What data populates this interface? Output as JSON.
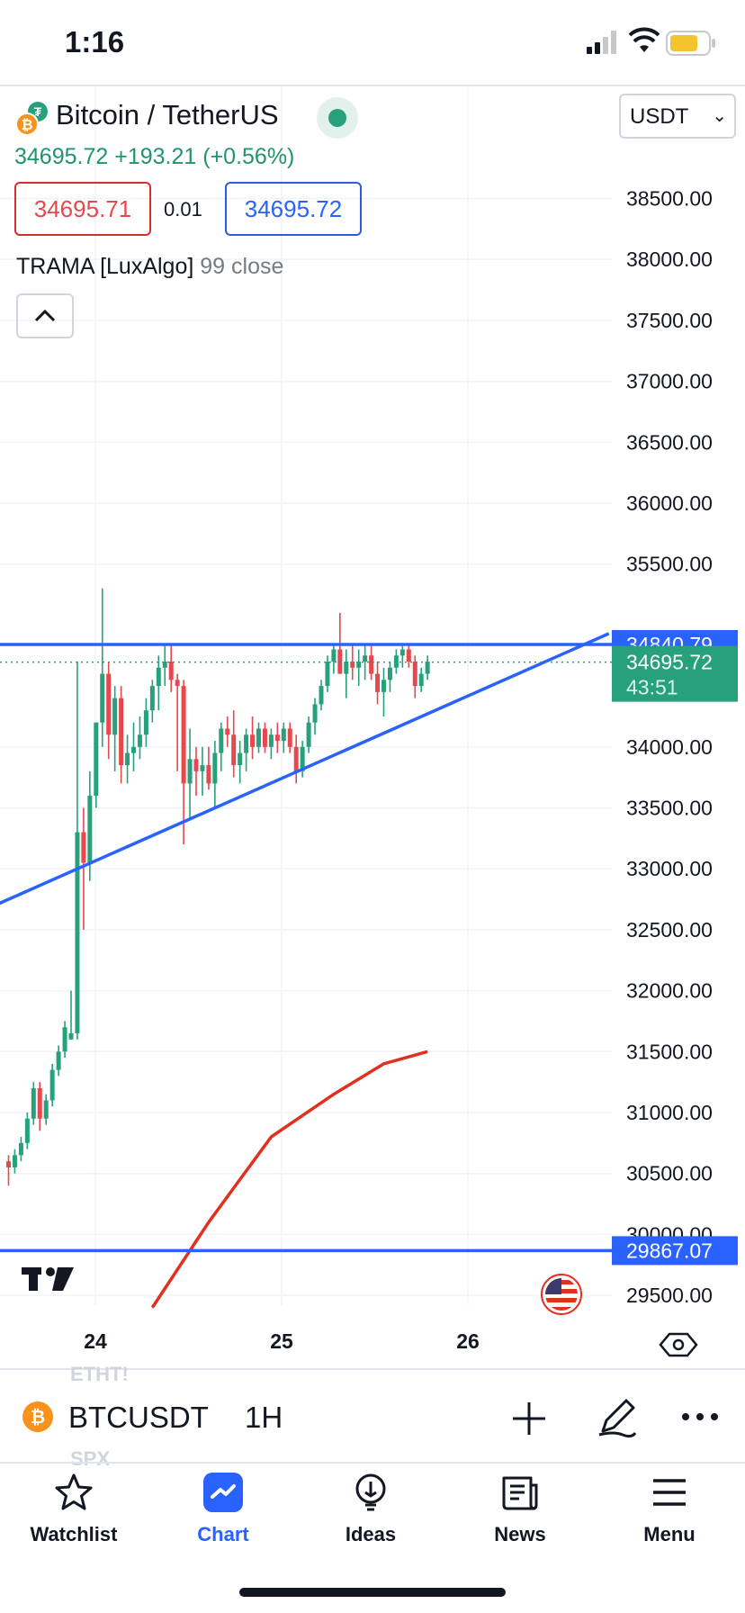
{
  "status_bar": {
    "time": "1:16"
  },
  "header": {
    "title": "Bitcoin / TetherUS",
    "currency": "USDT",
    "last_price": "34695.72",
    "change": "+193.21 (+0.56%)",
    "bid": "34695.71",
    "spread": "0.01",
    "ask": "34695.72",
    "indicator_name": "TRAMA [LuxAlgo]",
    "indicator_params": "99 close"
  },
  "colors": {
    "up": "#26a17b",
    "down": "#e5484d",
    "trendline": "#2962ff",
    "trama": "#e0301e",
    "accent": "#2962ff"
  },
  "chart_data": {
    "type": "candlestick",
    "symbol": "BTCUSDT",
    "interval": "1H",
    "ylim": [
      29300,
      38700
    ],
    "y_ticks": [
      "38500.00",
      "38000.00",
      "37500.00",
      "37000.00",
      "36500.00",
      "36000.00",
      "35500.00",
      "34000.00",
      "33500.00",
      "33000.00",
      "32500.00",
      "32000.00",
      "31500.00",
      "31000.00",
      "30500.00",
      "30000.00",
      "29500.00"
    ],
    "x_ticks": [
      "24",
      "25",
      "26"
    ],
    "price_tags": [
      {
        "label": "34840.79",
        "value": 34840.79,
        "color": "#2962ff"
      },
      {
        "label": "29867.07",
        "value": 29867.07,
        "color": "#2962ff"
      }
    ],
    "last_price_tag": {
      "price": "34695.72",
      "countdown": "43:51",
      "value": 34695.72,
      "color": "#26a17b"
    },
    "horizontal_lines": [
      34840.79,
      29867.07
    ],
    "trendline": {
      "from": [
        -11,
        32500
      ],
      "to": [
        96,
        34930
      ]
    },
    "trama": {
      "name": "TRAMA",
      "points": [
        [
          23,
          29400
        ],
        [
          32,
          30100
        ],
        [
          42,
          30800
        ],
        [
          52,
          31150
        ],
        [
          60,
          31400
        ],
        [
          67,
          31500
        ]
      ]
    },
    "candles": [
      {
        "o": 30600,
        "h": 30650,
        "l": 30400,
        "c": 30550
      },
      {
        "o": 30550,
        "h": 30700,
        "l": 30500,
        "c": 30650
      },
      {
        "o": 30650,
        "h": 30800,
        "l": 30600,
        "c": 30750
      },
      {
        "o": 30750,
        "h": 31000,
        "l": 30700,
        "c": 30950
      },
      {
        "o": 30950,
        "h": 31250,
        "l": 30900,
        "c": 31200
      },
      {
        "o": 31200,
        "h": 31250,
        "l": 30850,
        "c": 30950
      },
      {
        "o": 30950,
        "h": 31150,
        "l": 30900,
        "c": 31100
      },
      {
        "o": 31100,
        "h": 31400,
        "l": 31050,
        "c": 31350
      },
      {
        "o": 31350,
        "h": 31550,
        "l": 31300,
        "c": 31500
      },
      {
        "o": 31500,
        "h": 31750,
        "l": 31450,
        "c": 31700
      },
      {
        "o": 31600,
        "h": 32000,
        "l": 31600,
        "c": 31650
      },
      {
        "o": 31650,
        "h": 34700,
        "l": 31600,
        "c": 33300
      },
      {
        "o": 33300,
        "h": 33500,
        "l": 32500,
        "c": 33050
      },
      {
        "o": 33050,
        "h": 33800,
        "l": 32900,
        "c": 33600
      },
      {
        "o": 33600,
        "h": 34200,
        "l": 33500,
        "c": 34200
      },
      {
        "o": 34200,
        "h": 35300,
        "l": 34000,
        "c": 34600
      },
      {
        "o": 34600,
        "h": 34700,
        "l": 33900,
        "c": 34100
      },
      {
        "o": 34100,
        "h": 34500,
        "l": 33800,
        "c": 34400
      },
      {
        "o": 34400,
        "h": 34500,
        "l": 33700,
        "c": 33850
      },
      {
        "o": 33850,
        "h": 34100,
        "l": 33700,
        "c": 33950
      },
      {
        "o": 33950,
        "h": 34200,
        "l": 33800,
        "c": 34000
      },
      {
        "o": 34000,
        "h": 34250,
        "l": 33900,
        "c": 34100
      },
      {
        "o": 34100,
        "h": 34400,
        "l": 34000,
        "c": 34300
      },
      {
        "o": 34300,
        "h": 34550,
        "l": 34200,
        "c": 34500
      },
      {
        "o": 34500,
        "h": 34750,
        "l": 34300,
        "c": 34650
      },
      {
        "o": 34650,
        "h": 34850,
        "l": 34500,
        "c": 34700
      },
      {
        "o": 34700,
        "h": 34850,
        "l": 34450,
        "c": 34550
      },
      {
        "o": 34550,
        "h": 34600,
        "l": 33800,
        "c": 34500
      },
      {
        "o": 34500,
        "h": 34550,
        "l": 33200,
        "c": 33700
      },
      {
        "o": 33700,
        "h": 34150,
        "l": 33400,
        "c": 33900
      },
      {
        "o": 33900,
        "h": 34000,
        "l": 33600,
        "c": 33800
      },
      {
        "o": 33800,
        "h": 34000,
        "l": 33600,
        "c": 33850
      },
      {
        "o": 33850,
        "h": 34000,
        "l": 33650,
        "c": 33700
      },
      {
        "o": 33700,
        "h": 34050,
        "l": 33500,
        "c": 33950
      },
      {
        "o": 33950,
        "h": 34200,
        "l": 33800,
        "c": 34150
      },
      {
        "o": 34150,
        "h": 34250,
        "l": 34000,
        "c": 34100
      },
      {
        "o": 34100,
        "h": 34300,
        "l": 33750,
        "c": 33850
      },
      {
        "o": 33850,
        "h": 34050,
        "l": 33700,
        "c": 33950
      },
      {
        "o": 33950,
        "h": 34150,
        "l": 33800,
        "c": 34100
      },
      {
        "o": 34100,
        "h": 34250,
        "l": 33900,
        "c": 34000
      },
      {
        "o": 34000,
        "h": 34200,
        "l": 33950,
        "c": 34150
      },
      {
        "o": 34150,
        "h": 34200,
        "l": 33950,
        "c": 34000
      },
      {
        "o": 34000,
        "h": 34150,
        "l": 33900,
        "c": 34100
      },
      {
        "o": 34100,
        "h": 34200,
        "l": 33950,
        "c": 34050
      },
      {
        "o": 34050,
        "h": 34200,
        "l": 33950,
        "c": 34150
      },
      {
        "o": 34150,
        "h": 34200,
        "l": 33950,
        "c": 34000
      },
      {
        "o": 34000,
        "h": 34100,
        "l": 33700,
        "c": 33800
      },
      {
        "o": 33800,
        "h": 34050,
        "l": 33750,
        "c": 34000
      },
      {
        "o": 34000,
        "h": 34250,
        "l": 33950,
        "c": 34200
      },
      {
        "o": 34200,
        "h": 34400,
        "l": 34100,
        "c": 34350
      },
      {
        "o": 34350,
        "h": 34550,
        "l": 34300,
        "c": 34500
      },
      {
        "o": 34500,
        "h": 34750,
        "l": 34450,
        "c": 34700
      },
      {
        "o": 34700,
        "h": 34850,
        "l": 34600,
        "c": 34800
      },
      {
        "o": 34800,
        "h": 35100,
        "l": 34600,
        "c": 34600
      },
      {
        "o": 34600,
        "h": 34800,
        "l": 34400,
        "c": 34700
      },
      {
        "o": 34700,
        "h": 34850,
        "l": 34550,
        "c": 34650
      },
      {
        "o": 34650,
        "h": 34800,
        "l": 34500,
        "c": 34700
      },
      {
        "o": 34700,
        "h": 34850,
        "l": 34550,
        "c": 34750
      },
      {
        "o": 34750,
        "h": 34850,
        "l": 34550,
        "c": 34600
      },
      {
        "o": 34600,
        "h": 34700,
        "l": 34350,
        "c": 34450
      },
      {
        "o": 34450,
        "h": 34650,
        "l": 34250,
        "c": 34550
      },
      {
        "o": 34550,
        "h": 34700,
        "l": 34450,
        "c": 34650
      },
      {
        "o": 34650,
        "h": 34800,
        "l": 34600,
        "c": 34750
      },
      {
        "o": 34750,
        "h": 34850,
        "l": 34650,
        "c": 34800
      },
      {
        "o": 34800,
        "h": 34850,
        "l": 34650,
        "c": 34700
      },
      {
        "o": 34700,
        "h": 34750,
        "l": 34400,
        "c": 34500
      },
      {
        "o": 34500,
        "h": 34650,
        "l": 34450,
        "c": 34600
      },
      {
        "o": 34600,
        "h": 34750,
        "l": 34550,
        "c": 34700
      }
    ]
  },
  "toolbar": {
    "symbol": "BTCUSDT",
    "interval": "1H",
    "ghost_above": "ETHT!",
    "ghost_below": "SPX"
  },
  "nav": {
    "items": [
      {
        "label": "Watchlist",
        "icon": "star-icon"
      },
      {
        "label": "Chart",
        "icon": "chart-icon"
      },
      {
        "label": "Ideas",
        "icon": "lightbulb-icon"
      },
      {
        "label": "News",
        "icon": "news-icon"
      },
      {
        "label": "Menu",
        "icon": "menu-icon"
      }
    ]
  }
}
